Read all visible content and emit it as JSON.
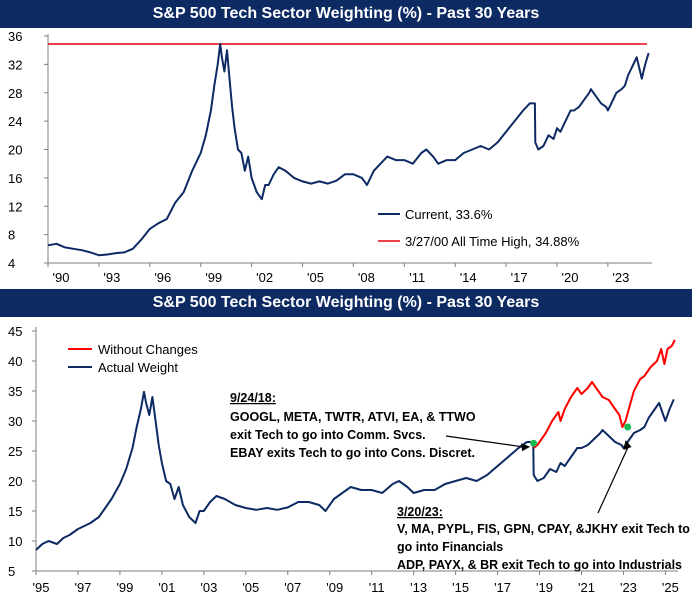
{
  "chart_data": [
    {
      "type": "line",
      "title": "S&P 500 Tech Sector Weighting (%) - Past 30 Years",
      "xlim": [
        1990,
        2025.6
      ],
      "ylim": [
        4,
        36
      ],
      "y_ticks": [
        "4",
        "8",
        "12",
        "16",
        "20",
        "24",
        "28",
        "32",
        "36"
      ],
      "x_ticks": [
        "'90",
        "'93",
        "'96",
        "'99",
        "'02",
        "'05",
        "'08",
        "'11",
        "'14",
        "'17",
        "'20",
        "'23"
      ],
      "grid": false,
      "legend_position": "bottom-right",
      "colors": {
        "current": "#0d2a63",
        "ath": "#e8000b"
      },
      "reference_line": {
        "name": "3/27/00 All Time High, 34.88%",
        "value": 34.88
      },
      "series": [
        {
          "name": "Current, 33.6%",
          "x": [
            1990.0,
            1990.5,
            1991.0,
            1991.5,
            1992.0,
            1992.5,
            1993.0,
            1993.5,
            1994.0,
            1994.5,
            1995.0,
            1995.5,
            1996.0,
            1996.5,
            1997.0,
            1997.5,
            1998.0,
            1998.5,
            1999.0,
            1999.3,
            1999.6,
            1999.8,
            2000.0,
            2000.15,
            2000.25,
            2000.4,
            2000.55,
            2000.7,
            2000.85,
            2001.0,
            2001.2,
            2001.4,
            2001.6,
            2001.8,
            2002.0,
            2002.3,
            2002.6,
            2002.8,
            2003.0,
            2003.3,
            2003.6,
            2004.0,
            2004.5,
            2005.0,
            2005.5,
            2006.0,
            2006.5,
            2007.0,
            2007.5,
            2008.0,
            2008.5,
            2008.8,
            2009.2,
            2009.6,
            2010.0,
            2010.5,
            2011.0,
            2011.5,
            2012.0,
            2012.3,
            2012.7,
            2013.0,
            2013.5,
            2014.0,
            2014.5,
            2015.0,
            2015.5,
            2016.0,
            2016.5,
            2017.0,
            2017.5,
            2018.0,
            2018.4,
            2018.7,
            2018.72,
            2018.9,
            2019.2,
            2019.5,
            2019.8,
            2020.0,
            2020.2,
            2020.5,
            2020.8,
            2021.0,
            2021.3,
            2021.6,
            2021.9,
            2022.0,
            2022.3,
            2022.6,
            2022.9,
            2023.0,
            2023.2,
            2023.5,
            2023.8,
            2024.0,
            2024.2,
            2024.5,
            2024.7,
            2024.9,
            2025.0,
            2025.2,
            2025.4
          ],
          "values": [
            6.5,
            6.7,
            6.2,
            6.0,
            5.8,
            5.5,
            5.1,
            5.2,
            5.4,
            5.5,
            6.0,
            7.3,
            8.8,
            9.6,
            10.2,
            12.5,
            14.0,
            17.0,
            19.5,
            22.0,
            25.5,
            29.0,
            32.0,
            34.88,
            33.0,
            31.0,
            34.0,
            30.0,
            26.0,
            23.0,
            20.0,
            19.5,
            17.0,
            19.0,
            16.0,
            14.0,
            13.0,
            15.0,
            15.0,
            16.5,
            17.5,
            17.0,
            16.0,
            15.5,
            15.2,
            15.5,
            15.2,
            15.6,
            16.5,
            16.5,
            16.0,
            15.0,
            17.0,
            18.0,
            19.0,
            18.5,
            18.5,
            18.0,
            19.5,
            20.0,
            19.0,
            18.0,
            18.5,
            18.5,
            19.5,
            20.0,
            20.5,
            20.0,
            21.0,
            22.5,
            24.0,
            25.5,
            26.5,
            26.5,
            21.0,
            20.0,
            20.5,
            22.0,
            21.5,
            23.0,
            22.5,
            24.0,
            25.5,
            25.5,
            26.0,
            27.0,
            28.0,
            28.5,
            27.5,
            26.5,
            26.0,
            25.5,
            26.5,
            28.0,
            28.5,
            29.0,
            30.5,
            32.0,
            33.0,
            31.0,
            30.0,
            32.0,
            33.6
          ]
        }
      ]
    },
    {
      "type": "line",
      "title": "S&P 500 Tech Sector Weighting (%) - Past 30 Years",
      "xlim": [
        1995,
        2025.6
      ],
      "ylim": [
        5,
        45
      ],
      "y_ticks": [
        "5",
        "10",
        "15",
        "20",
        "25",
        "30",
        "35",
        "40",
        "45"
      ],
      "x_ticks": [
        "'95",
        "'97",
        "'99",
        "'01",
        "'03",
        "'05",
        "'07",
        "'09",
        "'11",
        "'13",
        "'15",
        "'17",
        "'19",
        "'21",
        "'23",
        "'25"
      ],
      "grid": false,
      "legend_position": "top-left",
      "colors": {
        "without_changes": "#ff0000",
        "actual": "#0d2a63",
        "marker": "#1db954"
      },
      "series": [
        {
          "name": "Without Changes",
          "x": [
            2018.72,
            2018.9,
            2019.1,
            2019.3,
            2019.6,
            2019.9,
            2020.0,
            2020.2,
            2020.5,
            2020.8,
            2021.0,
            2021.3,
            2021.5,
            2021.8,
            2022.0,
            2022.3,
            2022.6,
            2022.8,
            2022.95,
            2023.1,
            2023.3,
            2023.5,
            2023.8,
            2024.0,
            2024.3,
            2024.6,
            2024.8,
            2024.95,
            2025.1,
            2025.3,
            2025.45
          ],
          "values": [
            25.5,
            26.0,
            27.0,
            28.0,
            30.0,
            31.5,
            30.0,
            32.0,
            34.0,
            35.5,
            34.5,
            35.5,
            36.5,
            35.0,
            34.0,
            33.5,
            32.0,
            31.0,
            29.0,
            30.0,
            32.5,
            35.0,
            37.0,
            37.5,
            39.0,
            40.0,
            42.0,
            39.5,
            42.0,
            42.5,
            43.5
          ]
        },
        {
          "name": "Actual Weight",
          "x": [
            1995.0,
            1995.3,
            1995.6,
            1996.0,
            1996.3,
            1996.6,
            1997.0,
            1997.3,
            1997.6,
            1998.0,
            1998.3,
            1998.6,
            1999.0,
            1999.3,
            1999.6,
            1999.8,
            2000.0,
            2000.15,
            2000.25,
            2000.4,
            2000.55,
            2000.7,
            2000.85,
            2001.0,
            2001.2,
            2001.4,
            2001.6,
            2001.8,
            2002.0,
            2002.3,
            2002.6,
            2002.8,
            2003.0,
            2003.3,
            2003.6,
            2004.0,
            2004.5,
            2005.0,
            2005.5,
            2006.0,
            2006.5,
            2007.0,
            2007.5,
            2008.0,
            2008.5,
            2008.8,
            2009.2,
            2009.6,
            2010.0,
            2010.5,
            2011.0,
            2011.5,
            2012.0,
            2012.3,
            2012.7,
            2013.0,
            2013.5,
            2014.0,
            2014.5,
            2015.0,
            2015.5,
            2016.0,
            2016.5,
            2017.0,
            2017.5,
            2018.0,
            2018.4,
            2018.7,
            2018.72,
            2018.9,
            2019.2,
            2019.5,
            2019.8,
            2020.0,
            2020.2,
            2020.5,
            2020.8,
            2021.0,
            2021.3,
            2021.6,
            2021.9,
            2022.0,
            2022.3,
            2022.6,
            2022.9,
            2023.0,
            2023.2,
            2023.5,
            2023.8,
            2024.0,
            2024.2,
            2024.5,
            2024.7,
            2024.9,
            2025.0,
            2025.2,
            2025.4
          ],
          "values": [
            8.5,
            9.5,
            10.0,
            9.5,
            10.5,
            11.0,
            12.0,
            12.5,
            13.0,
            14.0,
            15.5,
            17.0,
            19.5,
            22.0,
            25.5,
            29.0,
            32.0,
            34.88,
            33.0,
            31.0,
            34.0,
            30.0,
            26.0,
            23.0,
            20.0,
            19.5,
            17.0,
            19.0,
            16.0,
            14.0,
            13.0,
            15.0,
            15.0,
            16.5,
            17.5,
            17.0,
            16.0,
            15.5,
            15.2,
            15.5,
            15.2,
            15.6,
            16.5,
            16.5,
            16.0,
            15.0,
            17.0,
            18.0,
            19.0,
            18.5,
            18.5,
            18.0,
            19.5,
            20.0,
            19.0,
            18.0,
            18.5,
            18.5,
            19.5,
            20.0,
            20.5,
            20.0,
            21.0,
            22.5,
            24.0,
            25.5,
            26.5,
            26.5,
            21.0,
            20.0,
            20.5,
            22.0,
            21.5,
            23.0,
            22.5,
            24.0,
            25.5,
            25.5,
            26.0,
            27.0,
            28.0,
            28.5,
            27.5,
            26.5,
            26.0,
            25.5,
            26.5,
            28.0,
            28.5,
            29.0,
            30.5,
            32.0,
            33.0,
            31.0,
            30.0,
            32.0,
            33.6
          ]
        }
      ],
      "markers": [
        {
          "x": 2018.72,
          "y": 26.3
        },
        {
          "x": 2023.2,
          "y": 29.0
        }
      ],
      "annotations": [
        {
          "heading": "9/24/18:",
          "lines": [
            "GOOGL, META, TWTR, ATVI, EA, & TTWO",
            "exit Tech to go into Comm. Svcs.",
            "EBAY exits Tech to go into Cons. Discret."
          ],
          "points_to": {
            "x": 2018.6,
            "y": 25.8
          }
        },
        {
          "heading": "3/20/23:",
          "lines": [
            "V, MA, PYPL, FIS, GPN, CPAY, &JKHY exit Tech to",
            "go into Financials",
            "ADP, PAYX, & BR exit Tech to go into Industrials"
          ],
          "points_to": {
            "x": 2023.1,
            "y": 27.0
          }
        }
      ]
    }
  ]
}
